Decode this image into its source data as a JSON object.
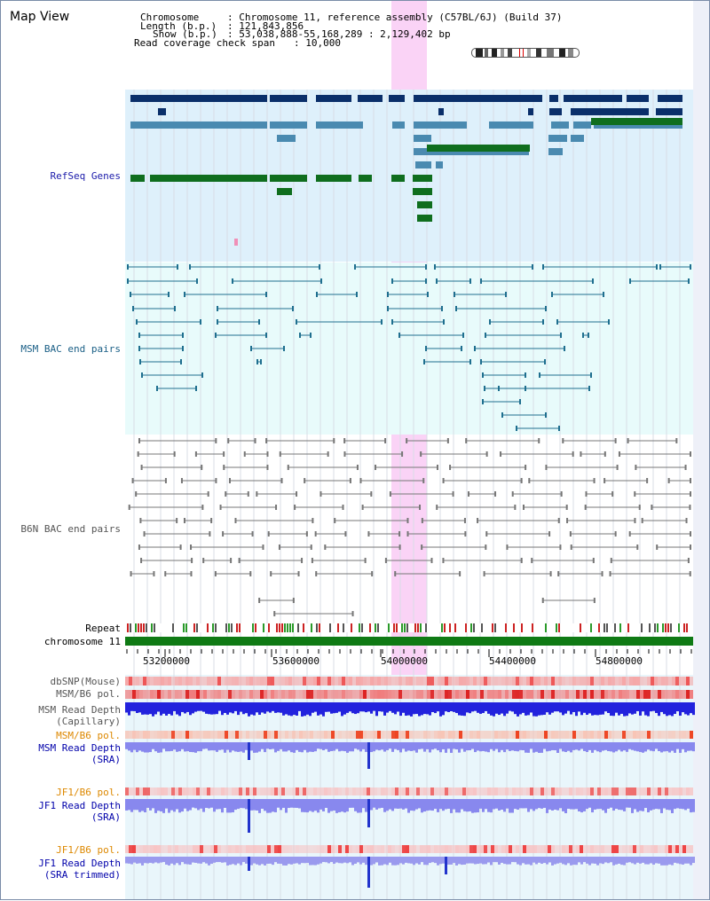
{
  "app_title": "Map View",
  "info": {
    "chromosome_key": "Chromosome",
    "chromosome_value": ": Chromosome 11, reference assembly (C57BL/6J) (Build 37)",
    "length_key": "Length (b.p.)",
    "length_value": ": 121,843,856",
    "show_key": "Show (b.p.)",
    "show_value": ": 53,038,888-55,168,289 : 2,129,402 bp",
    "coverage_key": "Read coverage check span",
    "coverage_value": ": 10,000"
  },
  "tracks": {
    "refseq": "RefSeq Genes",
    "msm_bac": "MSM BAC end pairs",
    "b6n_bac": "B6N BAC end pairs",
    "repeat": "Repeat",
    "chromosome": "chromosome 11",
    "dbsnp": "dbSNP(Mouse)",
    "msm_b6_pol_1": "MSM/B6 pol.",
    "msm_read_depth_cap_1": "MSM Read Depth",
    "msm_read_depth_cap_2": "(Capillary)",
    "msm_b6_pol_2": "MSM/B6 pol.",
    "msm_read_depth_sra_1": "MSM Read Depth",
    "msm_read_depth_sra_2": "(SRA)",
    "jf1_b6_pol_1": "JF1/B6 pol.",
    "jf1_read_depth_sra_1": "JF1 Read Depth",
    "jf1_read_depth_sra_2": "(SRA)",
    "jf1_b6_pol_2": "JF1/B6 pol.",
    "jf1_read_depth_trim_1": "JF1 Read Depth",
    "jf1_read_depth_trim_2": "(SRA trimmed)"
  },
  "axis": {
    "ticks": [
      "53200000",
      "53600000",
      "54000000",
      "54400000",
      "54800000"
    ]
  },
  "colors": {
    "refseq_label": "#1a1aaa",
    "msm_label": "#1a5f86",
    "b6n_label": "#555555",
    "pol_label": "#dd8800",
    "depth_label": "#0000aa",
    "gene_navy": "#0a2f6a",
    "gene_steel": "#4a8ab0",
    "gene_green": "#0f6e1e",
    "msm_line": "#1f6f8f",
    "b6n_line": "#777777",
    "highlight": "#f0a0e8",
    "chromosome_bar": "#0f7a14"
  },
  "icons": {
    "ideogram": "chromosome-ideogram-icon",
    "region_marker": "region-marker-icon"
  }
}
